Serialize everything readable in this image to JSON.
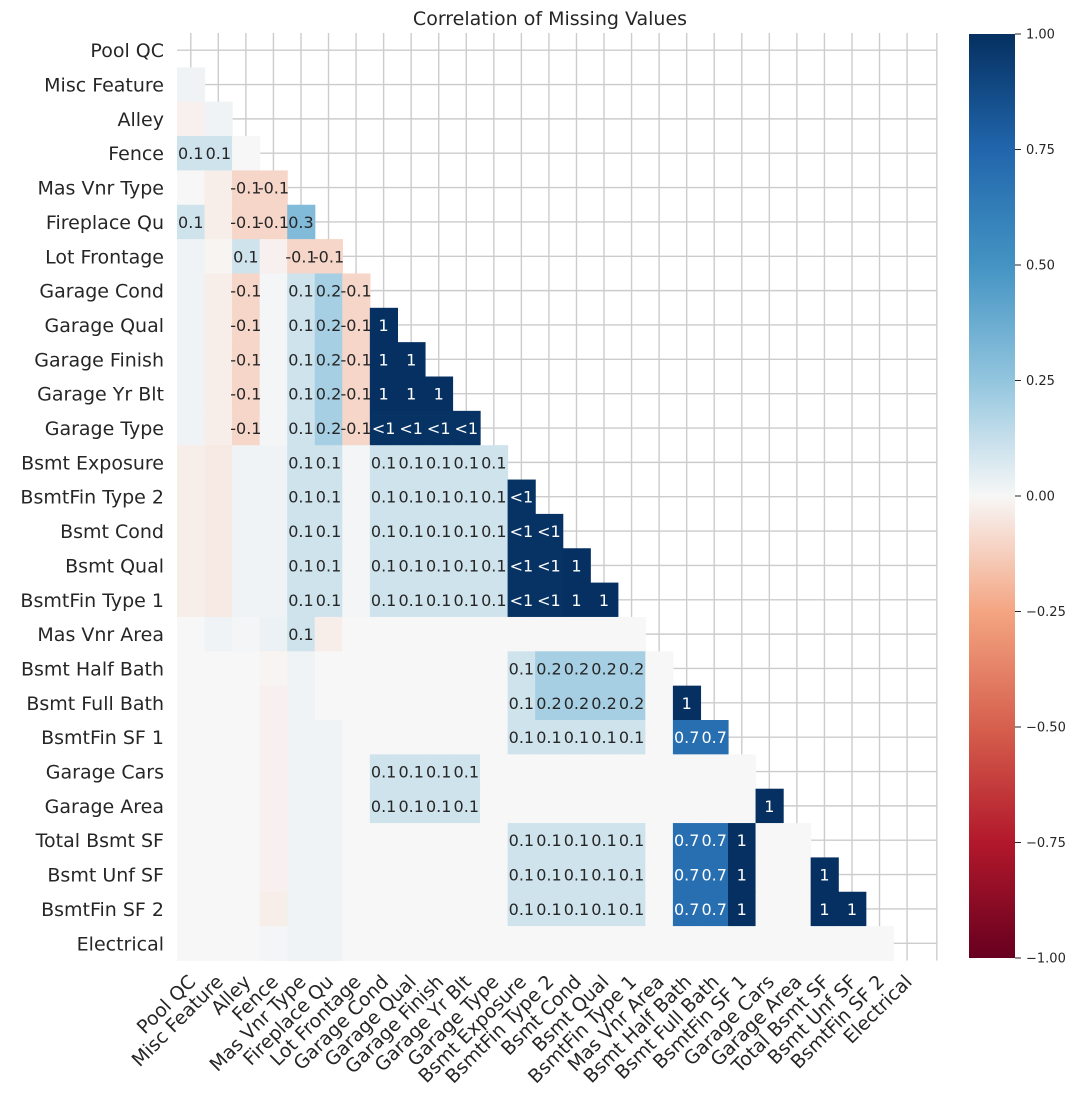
{
  "chart_data": {
    "type": "heatmap",
    "title": "Correlation of Missing Values",
    "labels": [
      "Pool QC",
      "Misc Feature",
      "Alley",
      "Fence",
      "Mas Vnr Type",
      "Fireplace Qu",
      "Lot Frontage",
      "Garage Cond",
      "Garage Qual",
      "Garage Finish",
      "Garage Yr Blt",
      "Garage Type",
      "Bsmt Exposure",
      "BsmtFin Type 2",
      "Bsmt Cond",
      "Bsmt Qual",
      "BsmtFin Type 1",
      "Mas Vnr Area",
      "Bsmt Half Bath",
      "Bsmt Full Bath",
      "BsmtFin SF 1",
      "Garage Cars",
      "Garage Area",
      "Total Bsmt SF",
      "Bsmt Unf SF",
      "BsmtFin SF 2",
      "Electrical"
    ],
    "mask": "upper-triangle-including-diagonal",
    "colorscale": "RdBu",
    "vmin": -1,
    "vmax": 1,
    "grid": true,
    "colorbar": {
      "ticks": [
        "1.00",
        "0.75",
        "0.50",
        "0.25",
        "0.00",
        "−0.25",
        "−0.50",
        "−0.75",
        "−1.00"
      ],
      "position": "right"
    },
    "lower_triangle": [
      [],
      [
        0.02
      ],
      [
        -0.02,
        0.02
      ],
      [
        0.1,
        0.1,
        0.0
      ],
      [
        0.0,
        -0.03,
        -0.1,
        -0.1
      ],
      [
        0.1,
        -0.03,
        -0.1,
        -0.1,
        0.3
      ],
      [
        0.02,
        -0.01,
        0.1,
        -0.02,
        -0.1,
        -0.1
      ],
      [
        0.02,
        -0.03,
        -0.1,
        0.01,
        0.1,
        0.2,
        -0.1
      ],
      [
        0.02,
        -0.03,
        -0.1,
        0.01,
        0.1,
        0.2,
        -0.1,
        1
      ],
      [
        0.02,
        -0.03,
        -0.1,
        0.01,
        0.1,
        0.2,
        -0.1,
        1,
        1
      ],
      [
        0.02,
        -0.03,
        -0.1,
        0.01,
        0.1,
        0.2,
        -0.1,
        1,
        1,
        1
      ],
      [
        0.02,
        -0.03,
        -0.1,
        0.01,
        0.1,
        0.2,
        -0.1,
        0.99,
        0.99,
        0.99,
        0.99
      ],
      [
        -0.03,
        -0.04,
        0.02,
        0.02,
        0.1,
        0.1,
        0.01,
        0.1,
        0.1,
        0.1,
        0.1,
        0.1
      ],
      [
        -0.03,
        -0.04,
        0.02,
        0.02,
        0.1,
        0.1,
        0.01,
        0.1,
        0.1,
        0.1,
        0.1,
        0.1,
        0.99
      ],
      [
        -0.03,
        -0.04,
        0.02,
        0.02,
        0.1,
        0.1,
        0.01,
        0.1,
        0.1,
        0.1,
        0.1,
        0.1,
        0.99,
        0.99
      ],
      [
        -0.03,
        -0.04,
        0.02,
        0.02,
        0.1,
        0.1,
        0.01,
        0.1,
        0.1,
        0.1,
        0.1,
        0.1,
        0.99,
        0.99,
        1
      ],
      [
        -0.03,
        -0.04,
        0.02,
        0.02,
        0.1,
        0.1,
        0.01,
        0.1,
        0.1,
        0.1,
        0.1,
        0.1,
        0.99,
        0.99,
        1,
        1
      ],
      [
        0.0,
        0.02,
        0.01,
        0.03,
        0.1,
        -0.03,
        0.0,
        0.0,
        0.0,
        0.0,
        0.0,
        0.0,
        0.0,
        0.0,
        0.0,
        0.0,
        0.0
      ],
      [
        0.0,
        0.0,
        0.0,
        -0.01,
        0.02,
        0.0,
        0.0,
        0.0,
        0.0,
        0.0,
        0.0,
        0.0,
        0.1,
        0.2,
        0.2,
        0.2,
        0.2,
        0.0
      ],
      [
        0.0,
        0.0,
        0.0,
        -0.02,
        0.02,
        0.0,
        0.0,
        0.0,
        0.0,
        0.0,
        0.0,
        0.0,
        0.1,
        0.2,
        0.2,
        0.2,
        0.2,
        0.0,
        1
      ],
      [
        0.0,
        0.0,
        0.0,
        -0.02,
        0.02,
        0.02,
        0.0,
        0.0,
        0.0,
        0.0,
        0.0,
        0.0,
        0.1,
        0.1,
        0.1,
        0.1,
        0.1,
        0.0,
        0.7,
        0.7
      ],
      [
        0.0,
        0.0,
        0.0,
        -0.02,
        0.02,
        0.02,
        0.0,
        0.1,
        0.1,
        0.1,
        0.1,
        0.0,
        0.0,
        0.0,
        0.0,
        0.0,
        0.0,
        0.0,
        0.0,
        0.0,
        0.0
      ],
      [
        0.0,
        0.0,
        0.0,
        -0.02,
        0.02,
        0.02,
        0.0,
        0.1,
        0.1,
        0.1,
        0.1,
        0.0,
        0.0,
        0.0,
        0.0,
        0.0,
        0.0,
        0.0,
        0.0,
        0.0,
        0.0,
        1
      ],
      [
        0.0,
        0.0,
        0.0,
        -0.02,
        0.02,
        0.02,
        0.0,
        0.0,
        0.0,
        0.0,
        0.0,
        0.0,
        0.1,
        0.1,
        0.1,
        0.1,
        0.1,
        0.0,
        0.7,
        0.7,
        1,
        0.0,
        0.0
      ],
      [
        0.0,
        0.0,
        0.0,
        -0.02,
        0.02,
        0.02,
        0.0,
        0.0,
        0.0,
        0.0,
        0.0,
        0.0,
        0.1,
        0.1,
        0.1,
        0.1,
        0.1,
        0.0,
        0.7,
        0.7,
        1,
        0.0,
        0.0,
        1
      ],
      [
        0.0,
        0.0,
        0.0,
        -0.03,
        0.02,
        0.02,
        0.0,
        0.0,
        0.0,
        0.0,
        0.0,
        0.0,
        0.1,
        0.1,
        0.1,
        0.1,
        0.1,
        0.0,
        0.7,
        0.7,
        1,
        0.0,
        0.0,
        1,
        1
      ],
      [
        0.0,
        0.0,
        0.0,
        0.01,
        0.02,
        0.02,
        0.0,
        0.0,
        0.0,
        0.0,
        0.0,
        0.0,
        0.0,
        0.0,
        0.0,
        0.0,
        0.0,
        0.0,
        0.0,
        0.0,
        0.0,
        0.0,
        0.0,
        0.0,
        0.0,
        0.0
      ]
    ]
  }
}
